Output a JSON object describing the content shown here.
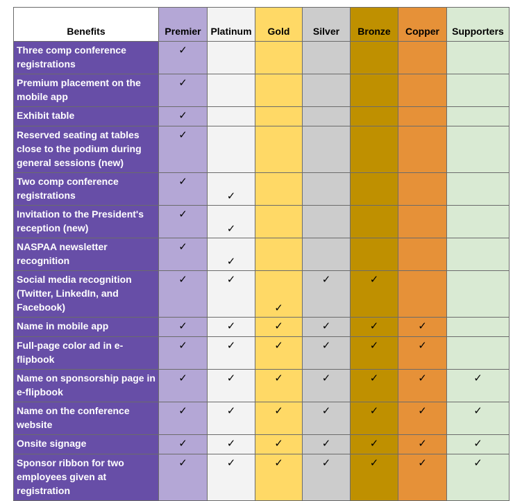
{
  "header": {
    "benefits": "Benefits",
    "tiers": [
      "Premier",
      "Platinum",
      "Gold",
      "Silver",
      "Bronze",
      "Copper",
      "Supporters"
    ]
  },
  "check_mark": "✓",
  "tier_colors": {
    "benefits_column": "#674ea7",
    "premier": "#b4a7d6",
    "platinum": "#f3f3f3",
    "gold": "#ffd966",
    "silver": "#cccccc",
    "bronze": "#bf9000",
    "copper": "#e69138",
    "supporters": "#d9ead3"
  },
  "rows": [
    {
      "benefit": "Three comp conference registrations",
      "checks": [
        true,
        false,
        false,
        false,
        false,
        false,
        false
      ]
    },
    {
      "benefit": "Premium placement on the mobile app",
      "checks": [
        true,
        false,
        false,
        false,
        false,
        false,
        false
      ]
    },
    {
      "benefit": "Exhibit table",
      "checks": [
        true,
        false,
        false,
        false,
        false,
        false,
        false
      ]
    },
    {
      "benefit": "Reserved seating at tables close to the podium during general sessions (new)",
      "checks": [
        true,
        false,
        false,
        false,
        false,
        false,
        false
      ]
    },
    {
      "benefit": "Two comp conference registrations",
      "checks": [
        true,
        true,
        false,
        false,
        false,
        false,
        false
      ]
    },
    {
      "benefit": "Invitation to the President's reception (new)",
      "checks": [
        true,
        true,
        false,
        false,
        false,
        false,
        false
      ]
    },
    {
      "benefit": "NASPAA newsletter recognition",
      "checks": [
        true,
        true,
        false,
        false,
        false,
        false,
        false
      ]
    },
    {
      "benefit": "Social media recognition (Twitter, LinkedIn, and Facebook)",
      "checks": [
        true,
        true,
        true,
        true,
        true,
        false,
        false
      ]
    },
    {
      "benefit": "Name in mobile app",
      "checks": [
        true,
        true,
        true,
        true,
        true,
        true,
        false
      ]
    },
    {
      "benefit": "Full-page color ad in e-flipbook",
      "checks": [
        true,
        true,
        true,
        true,
        true,
        true,
        false
      ]
    },
    {
      "benefit": "Name on sponsorship page in e-flipbook",
      "checks": [
        true,
        true,
        true,
        true,
        true,
        true,
        true
      ]
    },
    {
      "benefit": "Name on the conference website",
      "checks": [
        true,
        true,
        true,
        true,
        true,
        true,
        true
      ]
    },
    {
      "benefit": "Onsite signage",
      "checks": [
        true,
        true,
        true,
        true,
        true,
        true,
        true
      ]
    },
    {
      "benefit": "Sponsor ribbon for two employees given at registration",
      "checks": [
        true,
        true,
        true,
        true,
        true,
        true,
        true
      ]
    }
  ]
}
